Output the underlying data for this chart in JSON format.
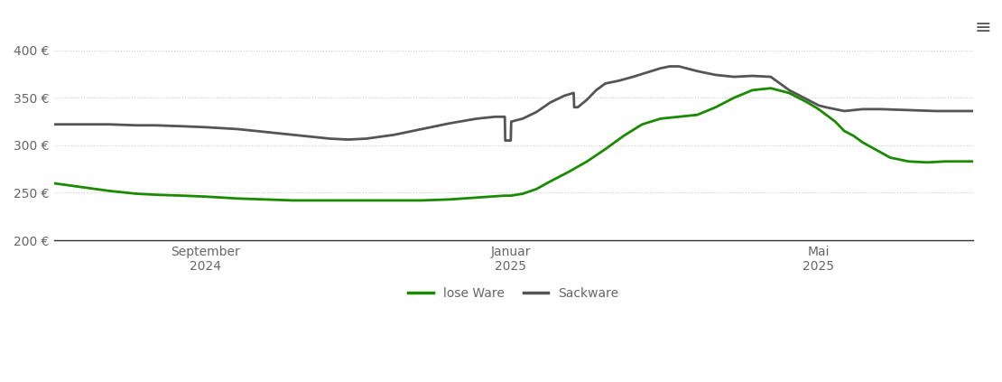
{
  "background_color": "#ffffff",
  "grid_color": "#cccccc",
  "tick_color": "#666666",
  "lose_ware_color": "#1a8a00",
  "sackware_color": "#555555",
  "y_min": 200,
  "y_max": 420,
  "yticks": [
    200,
    250,
    300,
    350,
    400
  ],
  "ytick_labels": [
    "200 €",
    "250 €",
    "300 €",
    "350 €",
    "400 €"
  ],
  "xtick_positions": [
    0.165,
    0.497,
    0.832
  ],
  "xtick_labels": [
    "September\n2024",
    "Januar\n2025",
    "Mai\n2025"
  ],
  "lose_ware_x": [
    0.0,
    0.03,
    0.06,
    0.09,
    0.11,
    0.14,
    0.165,
    0.2,
    0.23,
    0.26,
    0.29,
    0.32,
    0.36,
    0.4,
    0.43,
    0.46,
    0.49,
    0.497,
    0.51,
    0.525,
    0.54,
    0.56,
    0.58,
    0.6,
    0.62,
    0.64,
    0.66,
    0.68,
    0.7,
    0.72,
    0.74,
    0.76,
    0.78,
    0.8,
    0.82,
    0.832,
    0.85,
    0.86,
    0.87,
    0.88,
    0.895,
    0.91,
    0.93,
    0.95,
    0.97,
    1.0
  ],
  "lose_ware_y": [
    260,
    256,
    252,
    249,
    248,
    247,
    246,
    244,
    243,
    242,
    242,
    242,
    242,
    242,
    243,
    245,
    247,
    247,
    249,
    254,
    262,
    272,
    283,
    296,
    310,
    322,
    328,
    330,
    332,
    340,
    350,
    358,
    360,
    355,
    345,
    338,
    325,
    315,
    310,
    303,
    295,
    287,
    283,
    282,
    283,
    283
  ],
  "sackware_x": [
    0.0,
    0.03,
    0.06,
    0.09,
    0.11,
    0.14,
    0.165,
    0.2,
    0.23,
    0.26,
    0.28,
    0.3,
    0.32,
    0.34,
    0.37,
    0.4,
    0.43,
    0.46,
    0.48,
    0.49,
    0.4905,
    0.491,
    0.491,
    0.4915,
    0.492,
    0.495,
    0.497,
    0.4975,
    0.498,
    0.51,
    0.525,
    0.54,
    0.555,
    0.565,
    0.5655,
    0.566,
    0.57,
    0.58,
    0.59,
    0.6,
    0.615,
    0.63,
    0.64,
    0.65,
    0.66,
    0.67,
    0.68,
    0.7,
    0.72,
    0.74,
    0.76,
    0.78,
    0.8,
    0.82,
    0.832,
    0.84,
    0.86,
    0.88,
    0.9,
    0.93,
    0.96,
    1.0
  ],
  "sackware_y": [
    322,
    322,
    322,
    321,
    321,
    320,
    319,
    317,
    314,
    311,
    309,
    307,
    306,
    307,
    311,
    317,
    323,
    328,
    330,
    330,
    330,
    305,
    305,
    305,
    305,
    305,
    305,
    325,
    325,
    328,
    335,
    345,
    352,
    355,
    355,
    340,
    340,
    348,
    358,
    365,
    368,
    372,
    375,
    378,
    381,
    383,
    383,
    378,
    374,
    372,
    373,
    372,
    358,
    348,
    342,
    340,
    336,
    338,
    338,
    337,
    336,
    336
  ],
  "legend_labels": [
    "lose Ware",
    "Sackware"
  ],
  "line_width": 2.0
}
